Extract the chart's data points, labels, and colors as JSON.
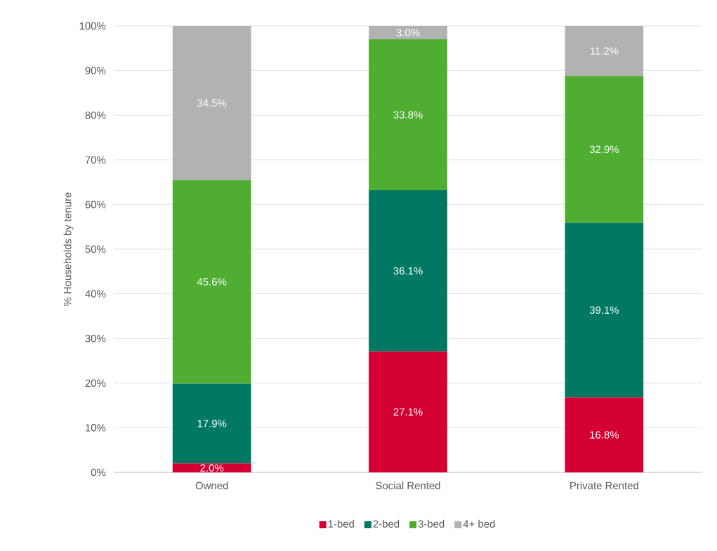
{
  "chart_data": {
    "type": "bar",
    "stacked": true,
    "ylabel": "% Households by tenure",
    "categories": [
      "Owned",
      "Social Rented",
      "Private Rented"
    ],
    "series": [
      {
        "name": "1-bed",
        "color": "#d50032",
        "values": [
          2.0,
          27.1,
          16.8
        ],
        "value_labels": [
          "2.0%",
          "27.1%",
          "16.8%"
        ]
      },
      {
        "name": "2-bed",
        "color": "#007864",
        "values": [
          17.9,
          36.1,
          39.1
        ],
        "value_labels": [
          "17.9%",
          "36.1%",
          "39.1%"
        ]
      },
      {
        "name": "3-bed",
        "color": "#4fae32",
        "values": [
          45.6,
          33.8,
          32.9
        ],
        "value_labels": [
          "45.6%",
          "33.8%",
          "32.9%"
        ]
      },
      {
        "name": "4+ bed",
        "color": "#b2b2b2",
        "values": [
          34.5,
          3.0,
          11.2
        ],
        "value_labels": [
          "34.5%",
          "3.0%",
          "11.2%"
        ]
      }
    ],
    "ylim": [
      0,
      100
    ],
    "yticks": [
      {
        "value": 0,
        "label": "0%"
      },
      {
        "value": 10,
        "label": "10%"
      },
      {
        "value": 20,
        "label": "20%"
      },
      {
        "value": 30,
        "label": "30%"
      },
      {
        "value": 40,
        "label": "40%"
      },
      {
        "value": 50,
        "label": "50%"
      },
      {
        "value": 60,
        "label": "60%"
      },
      {
        "value": 70,
        "label": "70%"
      },
      {
        "value": 80,
        "label": "80%"
      },
      {
        "value": 90,
        "label": "90%"
      },
      {
        "value": 100,
        "label": "100%"
      }
    ],
    "grid": "y",
    "legend": "bottom"
  }
}
